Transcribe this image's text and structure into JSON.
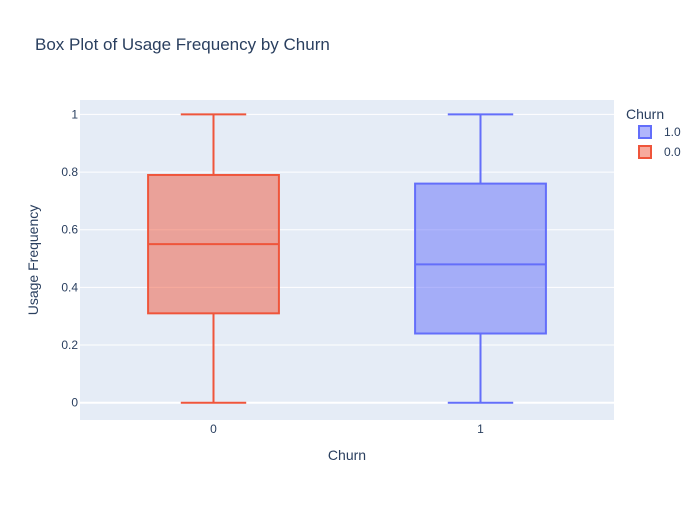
{
  "chart_data": {
    "type": "box",
    "title": "Box Plot of Usage Frequency by Churn",
    "xlabel": "Churn",
    "ylabel": "Usage Frequency",
    "ylim": [
      -0.06,
      1.05
    ],
    "yticks": [
      0,
      0.2,
      0.4,
      0.6,
      0.8,
      1
    ],
    "ytick_labels": [
      "0",
      "0.2",
      "0.4",
      "0.6",
      "0.8",
      "1"
    ],
    "categories": [
      "0",
      "1"
    ],
    "grid": true,
    "legend": {
      "title": "Churn",
      "placement": "top-right"
    },
    "series": [
      {
        "name": "1.0",
        "category": "1",
        "min": 0,
        "q1": 0.24,
        "median": 0.48,
        "q3": 0.76,
        "max": 1,
        "color": "#636efa"
      },
      {
        "name": "0.0",
        "category": "0",
        "min": 0,
        "q1": 0.31,
        "median": 0.55,
        "q3": 0.79,
        "max": 1,
        "color": "#ef553b"
      }
    ]
  },
  "colors": {
    "plot_bg": "#e5ecf6",
    "grid": "#ffffff",
    "text": "#2a3f5f"
  }
}
